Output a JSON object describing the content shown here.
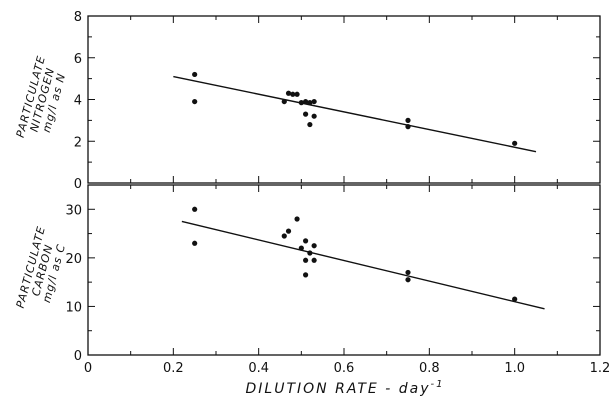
{
  "chart_data": [
    {
      "type": "scatter",
      "ylabel": [
        "PARTICULATE",
        "NITROGEN",
        "mg/l as N"
      ],
      "xlabel": "DILUTION RATE - day",
      "xlabel_superscript": "-1",
      "xlim": [
        0,
        1.2
      ],
      "ylim": [
        0,
        8
      ],
      "x_ticks": [
        "0",
        "0.2",
        "0.4",
        "0.6",
        "0.8",
        "1.0",
        "1.2"
      ],
      "y_ticks": [
        "0",
        "2",
        "4",
        "6",
        "8"
      ],
      "points": [
        {
          "x": 0.25,
          "y": 5.2
        },
        {
          "x": 0.25,
          "y": 3.9
        },
        {
          "x": 0.46,
          "y": 3.9
        },
        {
          "x": 0.47,
          "y": 4.3
        },
        {
          "x": 0.48,
          "y": 4.25
        },
        {
          "x": 0.49,
          "y": 4.25
        },
        {
          "x": 0.5,
          "y": 3.85
        },
        {
          "x": 0.51,
          "y": 3.9
        },
        {
          "x": 0.52,
          "y": 3.85
        },
        {
          "x": 0.53,
          "y": 3.9
        },
        {
          "x": 0.51,
          "y": 3.3
        },
        {
          "x": 0.53,
          "y": 3.2
        },
        {
          "x": 0.52,
          "y": 2.8
        },
        {
          "x": 0.75,
          "y": 3.0
        },
        {
          "x": 0.75,
          "y": 2.7
        },
        {
          "x": 1.0,
          "y": 1.9
        }
      ],
      "fit_line": {
        "x": [
          0.2,
          1.05
        ],
        "y": [
          5.1,
          1.5
        ]
      }
    },
    {
      "type": "scatter",
      "ylabel": [
        "PARTICULATE",
        "CARBON",
        "mg/l as C"
      ],
      "xlabel": "DILUTION RATE - day",
      "xlabel_superscript": "-1",
      "xlim": [
        0,
        1.2
      ],
      "ylim": [
        0,
        35
      ],
      "x_ticks": [
        "0",
        "0.2",
        "0.4",
        "0.6",
        "0.8",
        "1.0",
        "1.2"
      ],
      "y_ticks": [
        "0",
        "10",
        "20",
        "30"
      ],
      "points": [
        {
          "x": 0.25,
          "y": 30
        },
        {
          "x": 0.25,
          "y": 23
        },
        {
          "x": 0.46,
          "y": 24.5
        },
        {
          "x": 0.47,
          "y": 25.5
        },
        {
          "x": 0.49,
          "y": 28
        },
        {
          "x": 0.5,
          "y": 22
        },
        {
          "x": 0.51,
          "y": 23.5
        },
        {
          "x": 0.52,
          "y": 21
        },
        {
          "x": 0.51,
          "y": 19.5
        },
        {
          "x": 0.53,
          "y": 22.5
        },
        {
          "x": 0.53,
          "y": 19.5
        },
        {
          "x": 0.51,
          "y": 16.5
        },
        {
          "x": 0.75,
          "y": 17
        },
        {
          "x": 0.75,
          "y": 15.5
        },
        {
          "x": 1.0,
          "y": 11.5
        }
      ],
      "fit_line": {
        "x": [
          0.22,
          1.07
        ],
        "y": [
          27.5,
          9.5
        ]
      }
    }
  ]
}
